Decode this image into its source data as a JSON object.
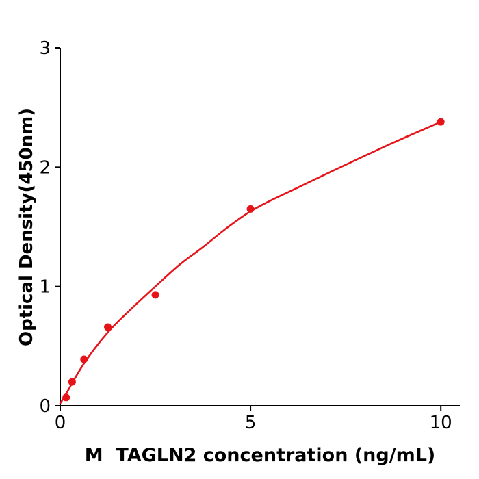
{
  "chart_data": {
    "type": "scatter",
    "title": "",
    "xlabel": "M  TAGLN2 concentration (ng/mL)",
    "ylabel": "Optical Density(450nm)",
    "xlim": [
      0,
      10.5
    ],
    "ylim": [
      0,
      3
    ],
    "x_ticks": [
      0,
      5,
      10
    ],
    "x_tick_labels": [
      "0",
      "5",
      "10"
    ],
    "y_ticks": [
      0,
      1,
      2,
      3
    ],
    "y_tick_labels": [
      "0",
      "1",
      "2",
      "3"
    ],
    "grid": false,
    "legend": false,
    "background_color": "#ffffff",
    "axis_color": "#000000",
    "marker_color": "#e61419",
    "curve_color": "#e61419",
    "points": [
      {
        "x": 0.156,
        "y": 0.07
      },
      {
        "x": 0.3125,
        "y": 0.2
      },
      {
        "x": 0.625,
        "y": 0.39
      },
      {
        "x": 1.25,
        "y": 0.66
      },
      {
        "x": 2.5,
        "y": 0.93
      },
      {
        "x": 5,
        "y": 1.65
      },
      {
        "x": 10,
        "y": 2.38
      }
    ],
    "fit_curve": {
      "x": [
        0,
        0.156,
        0.3125,
        0.625,
        1.25,
        1.875,
        2.5,
        3.125,
        3.75,
        4.375,
        5,
        6.25,
        7.5,
        8.75,
        10
      ],
      "y": [
        0.02,
        0.1,
        0.19,
        0.355,
        0.615,
        0.815,
        1.0,
        1.18,
        1.33,
        1.49,
        1.63,
        1.83,
        2.02,
        2.205,
        2.38
      ]
    }
  }
}
